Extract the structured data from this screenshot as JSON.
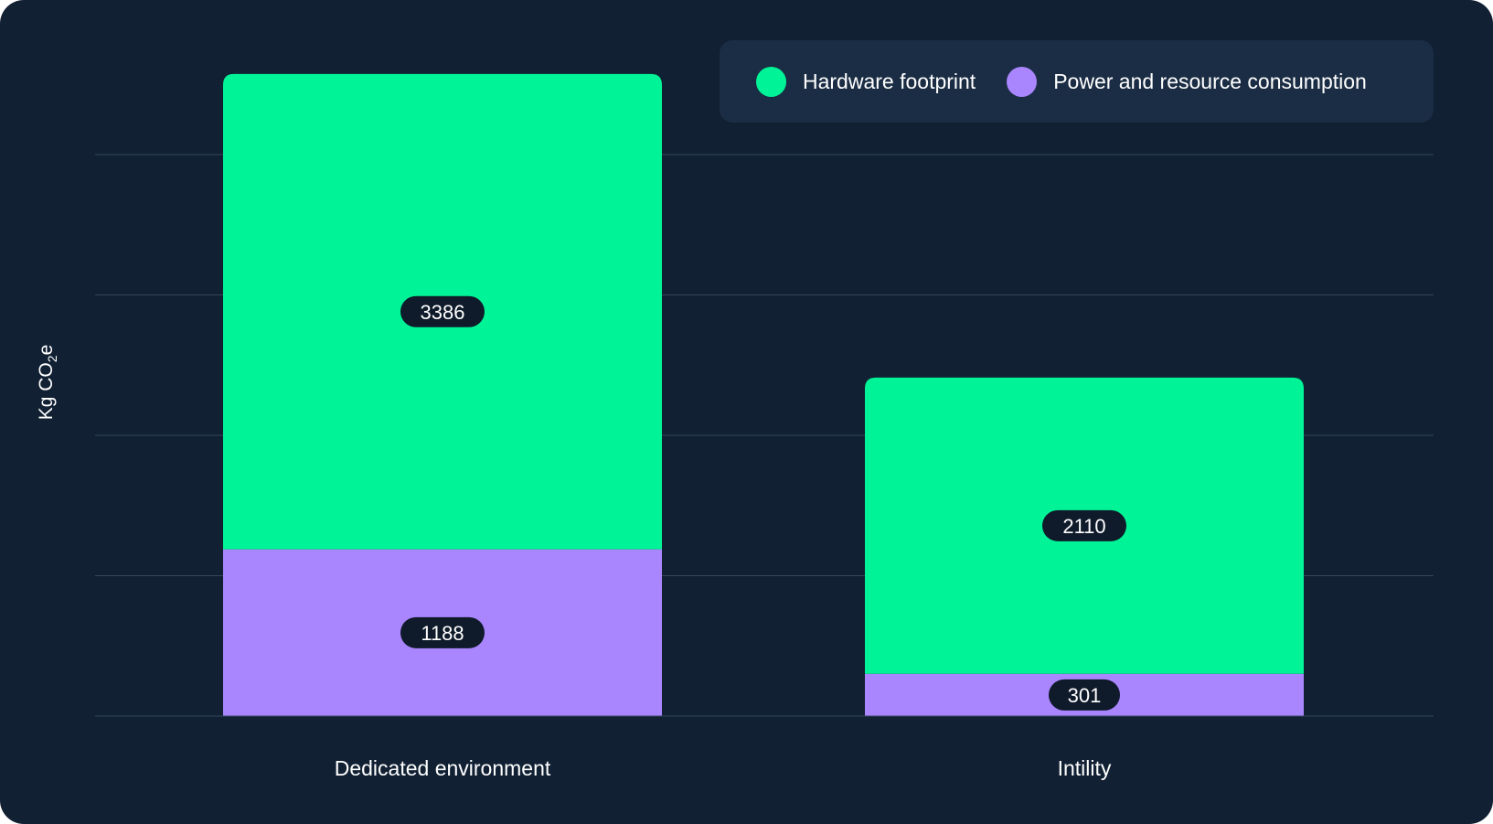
{
  "chart_data": {
    "type": "bar",
    "stacked": true,
    "categories": [
      "Dedicated environment",
      "Intility"
    ],
    "series": [
      {
        "name": "Power and resource consumption",
        "values": [
          1188,
          301
        ],
        "color": "#a986fd"
      },
      {
        "name": "Hardware footprint",
        "values": [
          3386,
          2110
        ],
        "color": "#00f497"
      }
    ],
    "ylabel_main": "Kg CO",
    "ylabel_sub": "2",
    "ylabel_tail": "e",
    "ylim": [
      0,
      5000
    ],
    "grid": true,
    "legend_position": "top-right"
  },
  "colors": {
    "background": "#112033",
    "legend_bg": "#1b2d44",
    "grid": "#33475e",
    "label_pill": "#0f1a2a",
    "text": "#ffffff"
  }
}
